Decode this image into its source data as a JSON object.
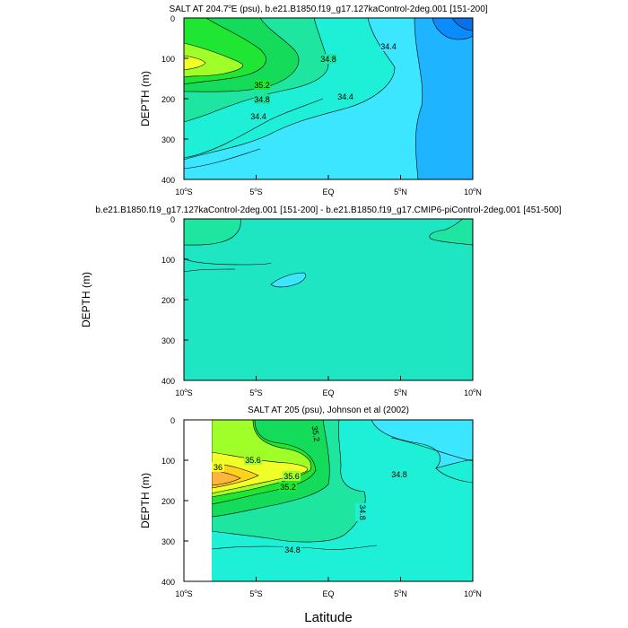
{
  "chart_data": [
    {
      "type": "contour",
      "title_prefix": "SALT AT 204.7",
      "title_degree": "o",
      "title_suffix": "E (psu), b.e21.B1850.f19_g17.127kaControl-2deg.001 [151-200]",
      "xlabel": "",
      "ylabel": "DEPTH (m)",
      "xlim": [
        -10,
        10
      ],
      "ylim": [
        0,
        400
      ],
      "y_ticks": [
        "0",
        "100",
        "200",
        "300",
        "400"
      ],
      "x_ticks": [
        {
          "num": "10",
          "deg": "o",
          "hemi": "S"
        },
        {
          "num": "5",
          "deg": "o",
          "hemi": "S"
        },
        {
          "num": "EQ",
          "deg": "",
          "hemi": ""
        },
        {
          "num": "5",
          "deg": "o",
          "hemi": "N"
        },
        {
          "num": "10",
          "deg": "o",
          "hemi": "N"
        }
      ],
      "contour_labels": [
        "34.8",
        "34.4",
        "35.2",
        "34.8",
        "34.4",
        "34.4"
      ],
      "grid": false
    },
    {
      "type": "contour",
      "title": "b.e21.B1850.f19_g17.127kaControl-2deg.001 [151-200] - b.e21.B1850.f19_g17.CMIP6-piControl-2deg.001 [451-500]",
      "xlabel": "",
      "ylabel": "DEPTH (m)",
      "xlim": [
        -10,
        10
      ],
      "ylim": [
        0,
        400
      ],
      "y_ticks": [
        "0",
        "100",
        "200",
        "300",
        "400"
      ],
      "x_ticks": [
        {
          "num": "10",
          "deg": "o",
          "hemi": "S"
        },
        {
          "num": "5",
          "deg": "o",
          "hemi": "S"
        },
        {
          "num": "EQ",
          "deg": "",
          "hemi": ""
        },
        {
          "num": "5",
          "deg": "o",
          "hemi": "N"
        },
        {
          "num": "10",
          "deg": "o",
          "hemi": "N"
        }
      ],
      "contour_labels": [],
      "grid": false
    },
    {
      "type": "contour",
      "title": "SALT AT 205 (psu), Johnson et al (2002)",
      "xlabel": "Latitude",
      "ylabel": "DEPTH (m)",
      "xlim": [
        -10,
        10
      ],
      "ylim": [
        0,
        400
      ],
      "y_ticks": [
        "0",
        "100",
        "200",
        "300",
        "400"
      ],
      "x_ticks": [
        {
          "num": "10",
          "deg": "o",
          "hemi": "S"
        },
        {
          "num": "5",
          "deg": "o",
          "hemi": "S"
        },
        {
          "num": "EQ",
          "deg": "",
          "hemi": ""
        },
        {
          "num": "5",
          "deg": "o",
          "hemi": "N"
        },
        {
          "num": "10",
          "deg": "o",
          "hemi": "N"
        }
      ],
      "contour_labels": [
        "35.2",
        "35.6",
        "36",
        "35.6",
        "35.2",
        "34.8",
        "34.8",
        "34.8"
      ],
      "grid": false
    }
  ],
  "colors": {
    "c1": "#0a8cff",
    "c2": "#1eb4ff",
    "c3": "#3ce6ff",
    "c4": "#1ef0d7",
    "c5": "#1ee6a0",
    "c6": "#14dc5a",
    "c7": "#1ee632",
    "c8": "#a0ff28",
    "c9": "#f0ff28",
    "c10": "#ffd21e",
    "c11": "#ffb43c",
    "diff": "#1ee6c3"
  }
}
